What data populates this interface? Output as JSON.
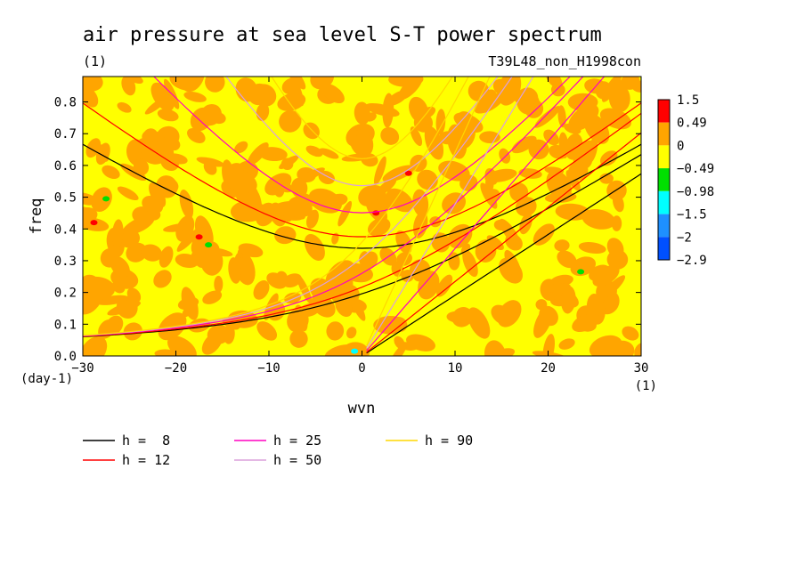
{
  "chart_data": {
    "type": "heatmap",
    "title": "air pressure at sea level S-T power spectrum",
    "subtitle_left": "(1)",
    "subtitle_right": "T39L48_non_H1998con",
    "xlabel": "wvn",
    "ylabel": "freq",
    "x_unit": "(1)",
    "y_unit": "(day-1)",
    "xlim": [
      -30,
      30
    ],
    "ylim": [
      0,
      0.88
    ],
    "x_ticks": [
      -30,
      -20,
      -10,
      0,
      10,
      20,
      30
    ],
    "y_ticks": [
      0.0,
      0.1,
      0.2,
      0.3,
      0.4,
      0.5,
      0.6,
      0.7,
      0.8
    ],
    "x_tick_labels": [
      "−30",
      "−20",
      "−10",
      "0",
      "10",
      "20",
      "30"
    ],
    "y_tick_labels": [
      "0.0",
      "0.1",
      "0.2",
      "0.3",
      "0.4",
      "0.5",
      "0.6",
      "0.7",
      "0.8"
    ],
    "colorbar": {
      "labels": [
        "1.5",
        "0.49",
        "0",
        "−0.49",
        "−0.98",
        "−1.5",
        "−2",
        "−2.9"
      ],
      "colors": [
        "#ff0000",
        "#ffa500",
        "#ffff00",
        "#00e000",
        "#00ffff",
        "#1e90ff",
        "#0050ff"
      ]
    },
    "field_colors": {
      "dominant": "#ffff00",
      "secondary": "#ffa500",
      "spot_red": "#ff0000",
      "spot_green": "#00e000",
      "spot_cyan": "#00ffff"
    },
    "dispersion_curves": [
      {
        "name": "h =  8",
        "color": "#000000",
        "h": 8
      },
      {
        "name": "h = 12",
        "color": "#ff0000",
        "h": 12
      },
      {
        "name": "h = 25",
        "color": "#ff00c0",
        "h": 25
      },
      {
        "name": "h = 50",
        "color": "#dca0dc",
        "h": 50
      },
      {
        "name": "h = 90",
        "color": "#ffd700",
        "h": 90
      }
    ]
  }
}
